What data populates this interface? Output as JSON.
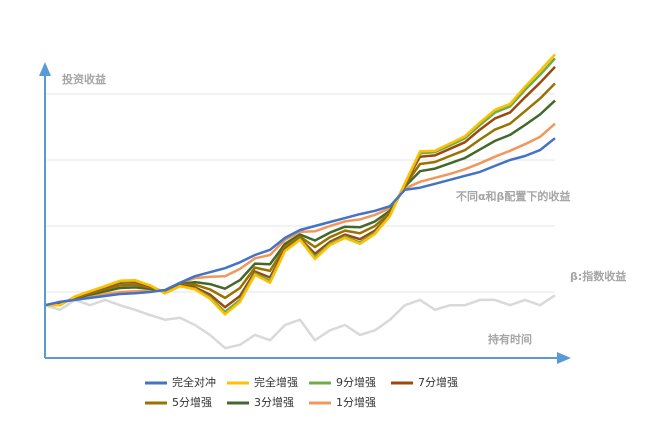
{
  "chart_data": {
    "type": "line",
    "y_label": "投资收益",
    "x_label": "持有时间",
    "annotation": "不同α和β配置下的收益",
    "ylim": [
      0,
      5
    ],
    "yticks": [
      1,
      2,
      3,
      4
    ],
    "grid": true,
    "benchmark": {
      "label": "β:指数收益",
      "color": "#d9d9d9",
      "values": [
        0.8,
        0.73,
        0.88,
        0.8,
        0.88,
        0.8,
        0.73,
        0.65,
        0.58,
        0.61,
        0.5,
        0.35,
        0.15,
        0.2,
        0.35,
        0.27,
        0.5,
        0.58,
        0.27,
        0.42,
        0.5,
        0.35,
        0.42,
        0.58,
        0.8,
        0.88,
        0.73,
        0.8,
        0.8,
        0.88,
        0.88,
        0.8,
        0.88,
        0.8,
        0.95
      ]
    },
    "series": [
      {
        "name": "完全对冲",
        "color": "#4472c4",
        "values": [
          0.8,
          0.85,
          0.88,
          0.91,
          0.94,
          0.97,
          0.98,
          1.0,
          1.03,
          1.14,
          1.24,
          1.3,
          1.36,
          1.45,
          1.56,
          1.64,
          1.82,
          1.94,
          2.0,
          2.06,
          2.12,
          2.18,
          2.23,
          2.3,
          2.55,
          2.58,
          2.64,
          2.7,
          2.76,
          2.82,
          2.91,
          3.0,
          3.06,
          3.15,
          3.33
        ]
      },
      {
        "name": "完全增强",
        "color": "#ffc000",
        "values": [
          0.8,
          0.8,
          0.93,
          1.01,
          1.09,
          1.17,
          1.18,
          1.1,
          0.98,
          1.09,
          1.04,
          0.9,
          0.66,
          0.85,
          1.26,
          1.14,
          1.62,
          1.79,
          1.5,
          1.71,
          1.82,
          1.73,
          1.88,
          2.15,
          2.65,
          3.13,
          3.14,
          3.25,
          3.36,
          3.57,
          3.76,
          3.85,
          4.11,
          4.35,
          4.6
        ]
      },
      {
        "name": "9分增强",
        "color": "#70ad47",
        "values": [
          0.8,
          0.8,
          0.93,
          1.01,
          1.08,
          1.16,
          1.17,
          1.1,
          0.98,
          1.09,
          1.05,
          0.92,
          0.7,
          0.88,
          1.28,
          1.17,
          1.63,
          1.8,
          1.53,
          1.73,
          1.84,
          1.75,
          1.9,
          2.16,
          2.65,
          3.1,
          3.12,
          3.22,
          3.33,
          3.53,
          3.72,
          3.81,
          4.06,
          4.29,
          4.54
        ]
      },
      {
        "name": "7分增强",
        "color": "#9e480e",
        "values": [
          0.8,
          0.81,
          0.92,
          1.0,
          1.07,
          1.14,
          1.15,
          1.09,
          0.99,
          1.1,
          1.07,
          0.96,
          0.77,
          0.94,
          1.31,
          1.22,
          1.65,
          1.81,
          1.58,
          1.76,
          1.87,
          1.8,
          1.93,
          2.17,
          2.64,
          3.05,
          3.07,
          3.17,
          3.27,
          3.46,
          3.63,
          3.72,
          3.95,
          4.17,
          4.41
        ]
      },
      {
        "name": "5分增强",
        "color": "#997300",
        "values": [
          0.8,
          0.82,
          0.91,
          0.98,
          1.04,
          1.1,
          1.11,
          1.07,
          1.0,
          1.11,
          1.11,
          1.04,
          0.91,
          1.06,
          1.37,
          1.32,
          1.69,
          1.84,
          1.68,
          1.83,
          1.93,
          1.89,
          2.0,
          2.2,
          2.62,
          2.94,
          2.97,
          3.06,
          3.15,
          3.31,
          3.46,
          3.55,
          3.74,
          3.93,
          4.16
        ]
      },
      {
        "name": "3分增强",
        "color": "#43682b",
        "values": [
          0.8,
          0.83,
          0.9,
          0.96,
          1.01,
          1.06,
          1.07,
          1.05,
          1.01,
          1.12,
          1.15,
          1.12,
          1.05,
          1.18,
          1.43,
          1.42,
          1.73,
          1.87,
          1.78,
          1.9,
          1.99,
          1.98,
          2.07,
          2.23,
          2.6,
          2.83,
          2.87,
          2.95,
          3.03,
          3.16,
          3.29,
          3.38,
          3.53,
          3.69,
          3.9
        ]
      },
      {
        "name": "1分增强",
        "color": "#f1975a",
        "values": [
          0.8,
          0.84,
          0.89,
          0.93,
          0.97,
          1.0,
          1.01,
          1.02,
          1.02,
          1.13,
          1.21,
          1.23,
          1.24,
          1.35,
          1.51,
          1.56,
          1.79,
          1.91,
          1.92,
          2.0,
          2.07,
          2.1,
          2.17,
          2.27,
          2.57,
          2.67,
          2.73,
          2.79,
          2.86,
          2.95,
          3.05,
          3.14,
          3.24,
          3.35,
          3.55
        ]
      }
    ]
  }
}
